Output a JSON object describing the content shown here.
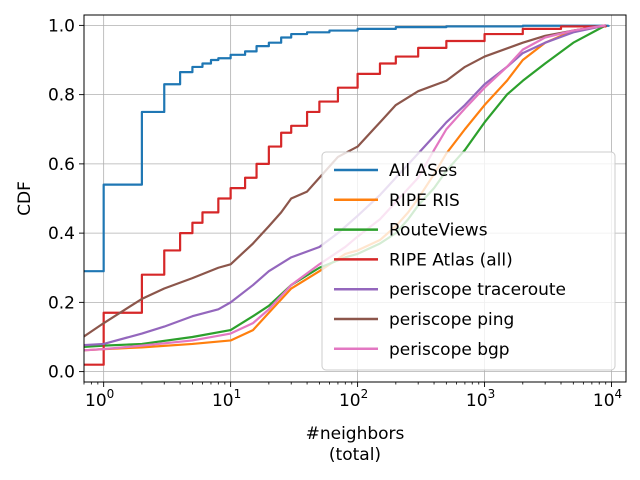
{
  "chart_data": {
    "type": "line",
    "title": "",
    "xlabel": "#neighbors",
    "xlabel_line2": "(total)",
    "ylabel": "CDF",
    "x_scale": "log",
    "xlim": [
      0.7,
      13000
    ],
    "ylim": [
      -0.03,
      1.03
    ],
    "x_ticks": [
      {
        "value": 1,
        "base": "10",
        "exp": "0"
      },
      {
        "value": 10,
        "base": "10",
        "exp": "1"
      },
      {
        "value": 100,
        "base": "10",
        "exp": "2"
      },
      {
        "value": 1000,
        "base": "10",
        "exp": "3"
      },
      {
        "value": 10000,
        "base": "10",
        "exp": "4"
      }
    ],
    "y_ticks": [
      "0.0",
      "0.2",
      "0.4",
      "0.6",
      "0.8",
      "1.0"
    ],
    "grid": true,
    "legend_position": "lower-right",
    "series": [
      {
        "name": "All ASes",
        "color": "#1f77b4",
        "step": true,
        "points": [
          [
            0.6,
            0.29
          ],
          [
            1,
            0.54
          ],
          [
            2,
            0.75
          ],
          [
            3,
            0.83
          ],
          [
            4,
            0.865
          ],
          [
            5,
            0.88
          ],
          [
            6,
            0.89
          ],
          [
            7,
            0.9
          ],
          [
            8,
            0.905
          ],
          [
            10,
            0.915
          ],
          [
            13,
            0.925
          ],
          [
            16,
            0.94
          ],
          [
            20,
            0.95
          ],
          [
            25,
            0.965
          ],
          [
            30,
            0.975
          ],
          [
            40,
            0.98
          ],
          [
            60,
            0.985
          ],
          [
            100,
            0.99
          ],
          [
            200,
            0.995
          ],
          [
            500,
            0.997
          ],
          [
            2000,
            0.999
          ],
          [
            9500,
            1.0
          ]
        ]
      },
      {
        "name": "RIPE RIS",
        "color": "#ff7f0e",
        "step": false,
        "points": [
          [
            0.6,
            0.06
          ],
          [
            1,
            0.065
          ],
          [
            2,
            0.07
          ],
          [
            5,
            0.08
          ],
          [
            10,
            0.09
          ],
          [
            15,
            0.12
          ],
          [
            20,
            0.17
          ],
          [
            30,
            0.24
          ],
          [
            50,
            0.29
          ],
          [
            80,
            0.34
          ],
          [
            100,
            0.35
          ],
          [
            150,
            0.38
          ],
          [
            200,
            0.42
          ],
          [
            250,
            0.46
          ],
          [
            300,
            0.5
          ],
          [
            400,
            0.57
          ],
          [
            500,
            0.63
          ],
          [
            700,
            0.7
          ],
          [
            1000,
            0.77
          ],
          [
            1500,
            0.84
          ],
          [
            2000,
            0.9
          ],
          [
            3000,
            0.95
          ],
          [
            5000,
            0.985
          ],
          [
            9000,
            1.0
          ]
        ]
      },
      {
        "name": "RouteViews",
        "color": "#2ca02c",
        "step": false,
        "points": [
          [
            0.6,
            0.07
          ],
          [
            1,
            0.075
          ],
          [
            2,
            0.08
          ],
          [
            5,
            0.1
          ],
          [
            10,
            0.12
          ],
          [
            15,
            0.16
          ],
          [
            20,
            0.19
          ],
          [
            30,
            0.25
          ],
          [
            50,
            0.3
          ],
          [
            80,
            0.33
          ],
          [
            100,
            0.34
          ],
          [
            150,
            0.37
          ],
          [
            200,
            0.4
          ],
          [
            250,
            0.44
          ],
          [
            300,
            0.48
          ],
          [
            400,
            0.53
          ],
          [
            500,
            0.58
          ],
          [
            700,
            0.64
          ],
          [
            1000,
            0.72
          ],
          [
            1500,
            0.8
          ],
          [
            2000,
            0.84
          ],
          [
            3000,
            0.89
          ],
          [
            5000,
            0.95
          ],
          [
            9000,
            1.0
          ]
        ]
      },
      {
        "name": "RIPE Atlas (all)",
        "color": "#d62728",
        "step": true,
        "points": [
          [
            0.6,
            0.02
          ],
          [
            1,
            0.17
          ],
          [
            2,
            0.28
          ],
          [
            3,
            0.35
          ],
          [
            4,
            0.4
          ],
          [
            5,
            0.43
          ],
          [
            6,
            0.46
          ],
          [
            8,
            0.5
          ],
          [
            10,
            0.53
          ],
          [
            13,
            0.56
          ],
          [
            16,
            0.6
          ],
          [
            20,
            0.65
          ],
          [
            25,
            0.69
          ],
          [
            30,
            0.71
          ],
          [
            40,
            0.75
          ],
          [
            50,
            0.78
          ],
          [
            70,
            0.82
          ],
          [
            100,
            0.86
          ],
          [
            150,
            0.89
          ],
          [
            200,
            0.91
          ],
          [
            300,
            0.935
          ],
          [
            500,
            0.955
          ],
          [
            1000,
            0.975
          ],
          [
            2000,
            0.99
          ],
          [
            4000,
            0.997
          ],
          [
            9000,
            1.0
          ]
        ]
      },
      {
        "name": "periscope traceroute",
        "color": "#9467bd",
        "step": false,
        "points": [
          [
            0.6,
            0.075
          ],
          [
            1,
            0.08
          ],
          [
            2,
            0.11
          ],
          [
            3,
            0.13
          ],
          [
            5,
            0.16
          ],
          [
            8,
            0.18
          ],
          [
            10,
            0.2
          ],
          [
            15,
            0.25
          ],
          [
            20,
            0.29
          ],
          [
            30,
            0.33
          ],
          [
            50,
            0.36
          ],
          [
            70,
            0.4
          ],
          [
            100,
            0.45
          ],
          [
            150,
            0.51
          ],
          [
            200,
            0.56
          ],
          [
            300,
            0.63
          ],
          [
            400,
            0.68
          ],
          [
            500,
            0.72
          ],
          [
            700,
            0.77
          ],
          [
            1000,
            0.83
          ],
          [
            1500,
            0.88
          ],
          [
            2000,
            0.92
          ],
          [
            3000,
            0.95
          ],
          [
            5000,
            0.98
          ],
          [
            9000,
            1.0
          ]
        ]
      },
      {
        "name": "periscope ping",
        "color": "#8c564b",
        "step": false,
        "points": [
          [
            0.6,
            0.085
          ],
          [
            1,
            0.14
          ],
          [
            2,
            0.21
          ],
          [
            3,
            0.24
          ],
          [
            5,
            0.27
          ],
          [
            8,
            0.3
          ],
          [
            10,
            0.31
          ],
          [
            15,
            0.37
          ],
          [
            20,
            0.42
          ],
          [
            25,
            0.46
          ],
          [
            30,
            0.5
          ],
          [
            40,
            0.52
          ],
          [
            50,
            0.56
          ],
          [
            70,
            0.62
          ],
          [
            100,
            0.65
          ],
          [
            150,
            0.72
          ],
          [
            200,
            0.77
          ],
          [
            300,
            0.81
          ],
          [
            500,
            0.84
          ],
          [
            700,
            0.88
          ],
          [
            1000,
            0.91
          ],
          [
            2000,
            0.95
          ],
          [
            3000,
            0.97
          ],
          [
            5000,
            0.985
          ],
          [
            9000,
            1.0
          ]
        ]
      },
      {
        "name": "periscope bgp",
        "color": "#e377c2",
        "step": false,
        "points": [
          [
            0.6,
            0.06
          ],
          [
            1,
            0.065
          ],
          [
            2,
            0.075
          ],
          [
            5,
            0.09
          ],
          [
            10,
            0.11
          ],
          [
            15,
            0.14
          ],
          [
            20,
            0.18
          ],
          [
            30,
            0.25
          ],
          [
            50,
            0.31
          ],
          [
            80,
            0.36
          ],
          [
            100,
            0.39
          ],
          [
            150,
            0.44
          ],
          [
            200,
            0.49
          ],
          [
            300,
            0.56
          ],
          [
            400,
            0.64
          ],
          [
            500,
            0.7
          ],
          [
            700,
            0.76
          ],
          [
            1000,
            0.82
          ],
          [
            1500,
            0.88
          ],
          [
            2000,
            0.93
          ],
          [
            3000,
            0.965
          ],
          [
            5000,
            0.985
          ],
          [
            9000,
            1.0
          ]
        ]
      }
    ]
  }
}
